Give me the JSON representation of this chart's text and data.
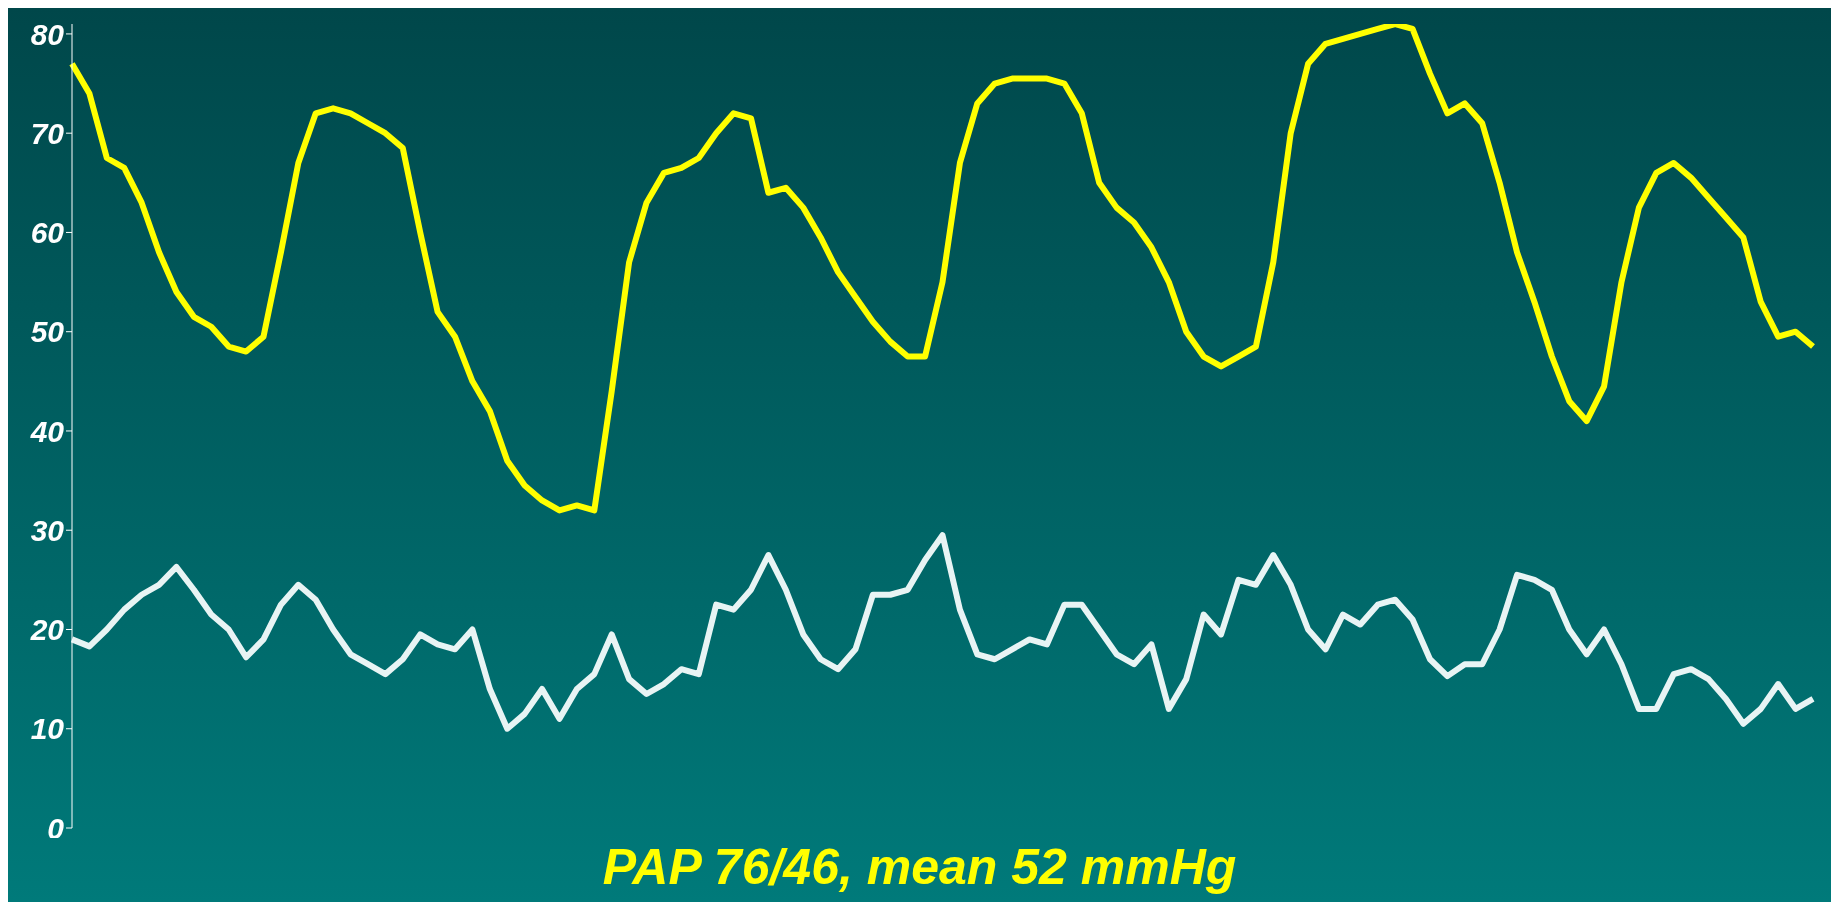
{
  "chart_data": {
    "type": "line",
    "title": "PAP 76/46, mean 52 mmHg",
    "categories": [
      null,
      null,
      null,
      null,
      null,
      null,
      null,
      null,
      null,
      null,
      null,
      null,
      null,
      null,
      null,
      null,
      null,
      null,
      null,
      null,
      null,
      null,
      null,
      null,
      null,
      null,
      null,
      null,
      null,
      null,
      null,
      null,
      null,
      null,
      null,
      null,
      null,
      null,
      null,
      null,
      null,
      null,
      null,
      null,
      null,
      null,
      null,
      null,
      null,
      null,
      null,
      null,
      null,
      null,
      null,
      null,
      null,
      null,
      null,
      null,
      null,
      null,
      null,
      null,
      null,
      null,
      null,
      null,
      null,
      null,
      null,
      null,
      null,
      null,
      null,
      null,
      null,
      null,
      null,
      null,
      null,
      null,
      null,
      null,
      null,
      null,
      null,
      null,
      null,
      null,
      null,
      null,
      null,
      null,
      null,
      null,
      null,
      null,
      null,
      null,
      null
    ],
    "series": [
      {
        "color": "#ffff00",
        "values": [
          77,
          74,
          67.5,
          66.5,
          63,
          58,
          54,
          51.5,
          50.5,
          48.5,
          48,
          49.5,
          58,
          67,
          72,
          72.5,
          72,
          71,
          70,
          68.5,
          60,
          52,
          49.5,
          45,
          42,
          37,
          34.5,
          33,
          32,
          32.5,
          32,
          44,
          57,
          63,
          66,
          66.5,
          67.5,
          70,
          72,
          71.5,
          64,
          64.5,
          62.5,
          59.5,
          56,
          53.5,
          51,
          49,
          47.5,
          47.5,
          55,
          67,
          73,
          75,
          75.5,
          75.5,
          75.5,
          75,
          72,
          65,
          62.5,
          61,
          58.5,
          55,
          50,
          47.5,
          46.5,
          47.5,
          48.5,
          57,
          70,
          77,
          79,
          79.5,
          80,
          80.5,
          81,
          80.5,
          76,
          72,
          73,
          71,
          65,
          58,
          53,
          47.5,
          43,
          41,
          44.5,
          55,
          62.5,
          66,
          67,
          65.5,
          63.5,
          61.5,
          59.5,
          53,
          49.5,
          50,
          48.5
        ]
      },
      {
        "color": "#e8f4f4",
        "values": [
          19,
          18.3,
          20,
          22,
          23.5,
          24.5,
          26.3,
          24,
          21.5,
          20,
          17.2,
          19,
          22.5,
          24.5,
          23,
          20,
          17.5,
          16.5,
          15.5,
          17,
          19.5,
          18.5,
          18,
          20,
          14,
          10,
          11.5,
          14,
          11,
          14,
          15.5,
          19.5,
          15,
          13.5,
          14.5,
          16,
          15.5,
          22.5,
          22,
          24,
          27.5,
          24,
          19.5,
          17,
          16,
          18,
          23.5,
          23.5,
          24,
          27,
          29.5,
          22,
          17.5,
          17,
          18,
          19,
          18.5,
          22.5,
          22.5,
          20,
          17.5,
          16.5,
          18.5,
          12,
          15,
          21.5,
          19.5,
          25,
          24.5,
          27.5,
          24.5,
          20,
          18,
          21.5,
          20.5,
          22.5,
          23,
          21,
          17,
          15.3,
          16.5,
          16.5,
          20,
          25.5,
          25,
          24,
          20,
          17.5,
          20,
          16.5,
          12,
          12,
          15.5,
          16,
          15,
          13,
          10.5,
          12,
          14.5,
          12,
          13
        ]
      }
    ],
    "ylim": [
      0,
      81
    ],
    "yticks": [
      0,
      10,
      20,
      30,
      40,
      50,
      60,
      70,
      80
    ]
  }
}
